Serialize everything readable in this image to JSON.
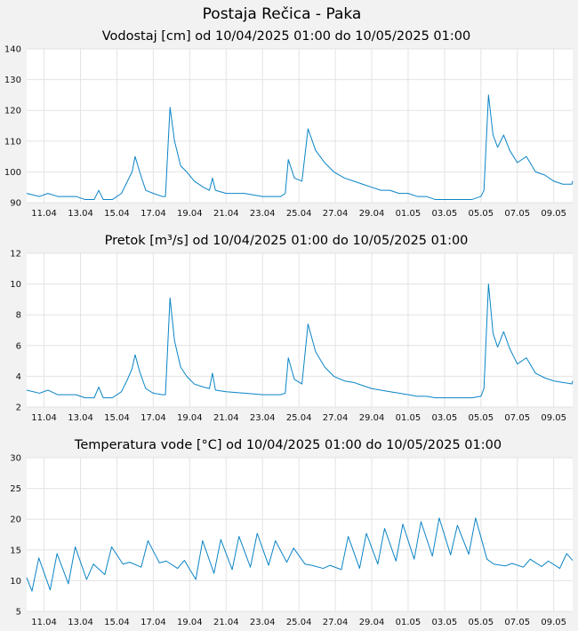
{
  "title": "Postaja Rečica - Paka",
  "colors": {
    "series": "#0a84c6",
    "background": "#f2f2f2",
    "plot": "#ffffff",
    "grid": "#e3e3e3"
  },
  "chart_data": [
    {
      "type": "line",
      "title": "Vodostaj [cm] od 10/04/2025 01:00 do 10/05/2025 01:00",
      "x_range": [
        "2025-04-10 01:00",
        "2025-05-10 01:00"
      ],
      "ylim": [
        90,
        140
      ],
      "yticks": [
        90,
        100,
        110,
        120,
        130,
        140
      ],
      "xticks": [
        "11.04",
        "13.04",
        "15.04",
        "17.04",
        "19.04",
        "21.04",
        "23.04",
        "25.04",
        "27.04",
        "29.04",
        "01.05",
        "03.05",
        "05.05",
        "07.05",
        "09.05"
      ],
      "grid": true,
      "series": [
        {
          "points": [
            [
              "2025-04-10 01:00",
              93
            ],
            [
              "2025-04-10 18:00",
              92
            ],
            [
              "2025-04-11 05:00",
              93
            ],
            [
              "2025-04-11 18:00",
              92
            ],
            [
              "2025-04-12 06:00",
              92
            ],
            [
              "2025-04-12 18:00",
              92
            ],
            [
              "2025-04-13 06:00",
              91
            ],
            [
              "2025-04-13 18:00",
              91
            ],
            [
              "2025-04-14 00:00",
              94
            ],
            [
              "2025-04-14 06:00",
              91
            ],
            [
              "2025-04-14 18:00",
              91
            ],
            [
              "2025-04-15 06:00",
              93
            ],
            [
              "2025-04-15 14:00",
              97
            ],
            [
              "2025-04-15 20:00",
              100
            ],
            [
              "2025-04-16 00:00",
              105
            ],
            [
              "2025-04-16 06:00",
              100
            ],
            [
              "2025-04-16 14:00",
              94
            ],
            [
              "2025-04-17 00:00",
              93
            ],
            [
              "2025-04-17 12:00",
              92
            ],
            [
              "2025-04-17 16:00",
              92
            ],
            [
              "2025-04-17 22:00",
              121
            ],
            [
              "2025-04-18 04:00",
              110
            ],
            [
              "2025-04-18 12:00",
              102
            ],
            [
              "2025-04-18 20:00",
              100
            ],
            [
              "2025-04-19 06:00",
              97
            ],
            [
              "2025-04-19 18:00",
              95
            ],
            [
              "2025-04-20 02:00",
              94
            ],
            [
              "2025-04-20 06:00",
              98
            ],
            [
              "2025-04-20 10:00",
              94
            ],
            [
              "2025-04-21 00:00",
              93
            ],
            [
              "2025-04-22 00:00",
              93
            ],
            [
              "2025-04-23 00:00",
              92
            ],
            [
              "2025-04-24 00:00",
              92
            ],
            [
              "2025-04-24 06:00",
              93
            ],
            [
              "2025-04-24 10:00",
              104
            ],
            [
              "2025-04-24 18:00",
              98
            ],
            [
              "2025-04-25 04:00",
              97
            ],
            [
              "2025-04-25 12:00",
              114
            ],
            [
              "2025-04-25 22:00",
              107
            ],
            [
              "2025-04-26 10:00",
              103
            ],
            [
              "2025-04-26 22:00",
              100
            ],
            [
              "2025-04-27 12:00",
              98
            ],
            [
              "2025-04-28 00:00",
              97
            ],
            [
              "2025-04-28 12:00",
              96
            ],
            [
              "2025-04-29 00:00",
              95
            ],
            [
              "2025-04-29 12:00",
              94
            ],
            [
              "2025-04-30 00:00",
              94
            ],
            [
              "2025-04-30 12:00",
              93
            ],
            [
              "2025-05-01 00:00",
              93
            ],
            [
              "2025-05-01 12:00",
              92
            ],
            [
              "2025-05-02 00:00",
              92
            ],
            [
              "2025-05-02 12:00",
              91
            ],
            [
              "2025-05-03 00:00",
              91
            ],
            [
              "2025-05-04 00:00",
              91
            ],
            [
              "2025-05-04 12:00",
              91
            ],
            [
              "2025-05-05 00:00",
              92
            ],
            [
              "2025-05-05 04:00",
              94
            ],
            [
              "2025-05-05 10:00",
              125
            ],
            [
              "2025-05-05 16:00",
              112
            ],
            [
              "2025-05-05 22:00",
              108
            ],
            [
              "2025-05-06 06:00",
              112
            ],
            [
              "2025-05-06 14:00",
              107
            ],
            [
              "2025-05-07 00:00",
              103
            ],
            [
              "2025-05-07 12:00",
              105
            ],
            [
              "2025-05-08 00:00",
              100
            ],
            [
              "2025-05-08 12:00",
              99
            ],
            [
              "2025-05-09 00:00",
              97
            ],
            [
              "2025-05-09 12:00",
              96
            ],
            [
              "2025-05-10 00:00",
              96
            ],
            [
              "2025-05-10 01:00",
              97
            ]
          ]
        }
      ]
    },
    {
      "type": "line",
      "title": "Pretok [m³/s] od 10/04/2025 01:00 do 10/05/2025 01:00",
      "x_range": [
        "2025-04-10 01:00",
        "2025-05-10 01:00"
      ],
      "ylim": [
        2,
        12
      ],
      "yticks": [
        2,
        4,
        6,
        8,
        10,
        12
      ],
      "xticks": [
        "11.04",
        "13.04",
        "15.04",
        "17.04",
        "19.04",
        "21.04",
        "23.04",
        "25.04",
        "27.04",
        "29.04",
        "01.05",
        "03.05",
        "05.05",
        "07.05",
        "09.05"
      ],
      "grid": true,
      "series": [
        {
          "points": [
            [
              "2025-04-10 01:00",
              3.1
            ],
            [
              "2025-04-10 18:00",
              2.9
            ],
            [
              "2025-04-11 05:00",
              3.1
            ],
            [
              "2025-04-11 18:00",
              2.8
            ],
            [
              "2025-04-12 06:00",
              2.8
            ],
            [
              "2025-04-12 18:00",
              2.8
            ],
            [
              "2025-04-13 06:00",
              2.6
            ],
            [
              "2025-04-13 18:00",
              2.6
            ],
            [
              "2025-04-14 00:00",
              3.3
            ],
            [
              "2025-04-14 06:00",
              2.6
            ],
            [
              "2025-04-14 18:00",
              2.6
            ],
            [
              "2025-04-15 06:00",
              3.0
            ],
            [
              "2025-04-15 14:00",
              3.8
            ],
            [
              "2025-04-15 20:00",
              4.5
            ],
            [
              "2025-04-16 00:00",
              5.4
            ],
            [
              "2025-04-16 06:00",
              4.3
            ],
            [
              "2025-04-16 14:00",
              3.2
            ],
            [
              "2025-04-17 00:00",
              2.9
            ],
            [
              "2025-04-17 12:00",
              2.8
            ],
            [
              "2025-04-17 16:00",
              2.8
            ],
            [
              "2025-04-17 22:00",
              9.1
            ],
            [
              "2025-04-18 04:00",
              6.3
            ],
            [
              "2025-04-18 12:00",
              4.6
            ],
            [
              "2025-04-18 20:00",
              4.0
            ],
            [
              "2025-04-19 06:00",
              3.5
            ],
            [
              "2025-04-19 18:00",
              3.3
            ],
            [
              "2025-04-20 02:00",
              3.2
            ],
            [
              "2025-04-20 06:00",
              4.2
            ],
            [
              "2025-04-20 10:00",
              3.1
            ],
            [
              "2025-04-21 00:00",
              3.0
            ],
            [
              "2025-04-22 00:00",
              2.9
            ],
            [
              "2025-04-23 00:00",
              2.8
            ],
            [
              "2025-04-24 00:00",
              2.8
            ],
            [
              "2025-04-24 06:00",
              2.9
            ],
            [
              "2025-04-24 10:00",
              5.2
            ],
            [
              "2025-04-24 18:00",
              3.8
            ],
            [
              "2025-04-25 04:00",
              3.5
            ],
            [
              "2025-04-25 12:00",
              7.4
            ],
            [
              "2025-04-25 22:00",
              5.6
            ],
            [
              "2025-04-26 10:00",
              4.6
            ],
            [
              "2025-04-26 22:00",
              4.0
            ],
            [
              "2025-04-27 12:00",
              3.7
            ],
            [
              "2025-04-28 00:00",
              3.6
            ],
            [
              "2025-04-28 12:00",
              3.4
            ],
            [
              "2025-04-29 00:00",
              3.2
            ],
            [
              "2025-04-29 12:00",
              3.1
            ],
            [
              "2025-04-30 00:00",
              3.0
            ],
            [
              "2025-04-30 12:00",
              2.9
            ],
            [
              "2025-05-01 00:00",
              2.8
            ],
            [
              "2025-05-01 12:00",
              2.7
            ],
            [
              "2025-05-02 00:00",
              2.7
            ],
            [
              "2025-05-02 12:00",
              2.6
            ],
            [
              "2025-05-03 00:00",
              2.6
            ],
            [
              "2025-05-04 00:00",
              2.6
            ],
            [
              "2025-05-04 12:00",
              2.6
            ],
            [
              "2025-05-05 00:00",
              2.7
            ],
            [
              "2025-05-05 04:00",
              3.2
            ],
            [
              "2025-05-05 10:00",
              10.0
            ],
            [
              "2025-05-05 16:00",
              6.8
            ],
            [
              "2025-05-05 22:00",
              5.9
            ],
            [
              "2025-05-06 06:00",
              6.9
            ],
            [
              "2025-05-06 14:00",
              5.8
            ],
            [
              "2025-05-07 00:00",
              4.8
            ],
            [
              "2025-05-07 12:00",
              5.2
            ],
            [
              "2025-05-08 00:00",
              4.2
            ],
            [
              "2025-05-08 12:00",
              3.9
            ],
            [
              "2025-05-09 00:00",
              3.7
            ],
            [
              "2025-05-09 12:00",
              3.6
            ],
            [
              "2025-05-10 00:00",
              3.5
            ],
            [
              "2025-05-10 01:00",
              3.7
            ]
          ]
        }
      ]
    },
    {
      "type": "line",
      "title": "Temperatura vode [°C] od 10/04/2025 01:00 do 10/05/2025 01:00",
      "x_range": [
        "2025-04-10 01:00",
        "2025-05-10 01:00"
      ],
      "ylim": [
        5,
        30
      ],
      "yticks": [
        5,
        10,
        15,
        20,
        25,
        30
      ],
      "xticks": [
        "11.04",
        "13.04",
        "15.04",
        "17.04",
        "19.04",
        "21.04",
        "23.04",
        "25.04",
        "27.04",
        "29.04",
        "01.05",
        "03.05",
        "05.05",
        "07.05",
        "09.05"
      ],
      "grid": true,
      "series": [
        {
          "points": [
            [
              "2025-04-10 01:00",
              10.5
            ],
            [
              "2025-04-10 08:00",
              8.3
            ],
            [
              "2025-04-10 17:00",
              13.7
            ],
            [
              "2025-04-11 08:00",
              8.5
            ],
            [
              "2025-04-11 17:00",
              14.4
            ],
            [
              "2025-04-12 08:00",
              9.5
            ],
            [
              "2025-04-12 17:00",
              15.5
            ],
            [
              "2025-04-13 08:00",
              10.2
            ],
            [
              "2025-04-13 17:00",
              12.7
            ],
            [
              "2025-04-14 08:00",
              11.0
            ],
            [
              "2025-04-14 17:00",
              15.5
            ],
            [
              "2025-04-15 08:00",
              12.7
            ],
            [
              "2025-04-15 17:00",
              13.0
            ],
            [
              "2025-04-16 08:00",
              12.2
            ],
            [
              "2025-04-16 17:00",
              16.5
            ],
            [
              "2025-04-17 08:00",
              12.9
            ],
            [
              "2025-04-17 17:00",
              13.2
            ],
            [
              "2025-04-18 08:00",
              12.0
            ],
            [
              "2025-04-18 17:00",
              13.3
            ],
            [
              "2025-04-19 08:00",
              10.2
            ],
            [
              "2025-04-19 17:00",
              16.5
            ],
            [
              "2025-04-20 08:00",
              11.2
            ],
            [
              "2025-04-20 17:00",
              16.7
            ],
            [
              "2025-04-21 08:00",
              11.8
            ],
            [
              "2025-04-21 17:00",
              17.2
            ],
            [
              "2025-04-22 08:00",
              12.2
            ],
            [
              "2025-04-22 17:00",
              17.7
            ],
            [
              "2025-04-23 08:00",
              12.5
            ],
            [
              "2025-04-23 17:00",
              16.5
            ],
            [
              "2025-04-24 08:00",
              13.0
            ],
            [
              "2025-04-24 17:00",
              15.3
            ],
            [
              "2025-04-25 08:00",
              12.7
            ],
            [
              "2025-04-25 17:00",
              12.5
            ],
            [
              "2025-04-26 08:00",
              12.0
            ],
            [
              "2025-04-26 17:00",
              12.5
            ],
            [
              "2025-04-27 08:00",
              11.8
            ],
            [
              "2025-04-27 17:00",
              17.2
            ],
            [
              "2025-04-28 08:00",
              12.0
            ],
            [
              "2025-04-28 17:00",
              17.7
            ],
            [
              "2025-04-29 08:00",
              12.7
            ],
            [
              "2025-04-29 17:00",
              18.5
            ],
            [
              "2025-04-30 08:00",
              13.2
            ],
            [
              "2025-04-30 17:00",
              19.2
            ],
            [
              "2025-05-01 08:00",
              13.5
            ],
            [
              "2025-05-01 17:00",
              19.6
            ],
            [
              "2025-05-02 08:00",
              14.0
            ],
            [
              "2025-05-02 17:00",
              20.2
            ],
            [
              "2025-05-03 08:00",
              14.2
            ],
            [
              "2025-05-03 17:00",
              19.0
            ],
            [
              "2025-05-04 08:00",
              14.3
            ],
            [
              "2025-05-04 17:00",
              20.2
            ],
            [
              "2025-05-05 08:00",
              13.5
            ],
            [
              "2025-05-05 17:00",
              12.7
            ],
            [
              "2025-05-06 08:00",
              12.4
            ],
            [
              "2025-05-06 17:00",
              12.8
            ],
            [
              "2025-05-07 08:00",
              12.2
            ],
            [
              "2025-05-07 17:00",
              13.5
            ],
            [
              "2025-05-08 08:00",
              12.3
            ],
            [
              "2025-05-08 17:00",
              13.2
            ],
            [
              "2025-05-09 08:00",
              12.0
            ],
            [
              "2025-05-09 17:00",
              14.4
            ],
            [
              "2025-05-10 01:00",
              13.3
            ]
          ]
        }
      ]
    }
  ]
}
